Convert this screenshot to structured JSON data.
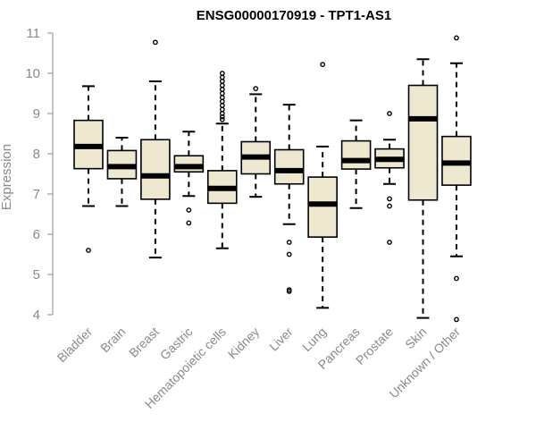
{
  "chart_data": {
    "type": "boxplot",
    "title": "ENSG00000170919 - TPT1-AS1",
    "xlabel": "",
    "ylabel": "Expression",
    "ylim": [
      4,
      11
    ],
    "yticks": [
      4,
      5,
      6,
      7,
      8,
      9,
      10,
      11
    ],
    "box_color": "#efe8d0",
    "categories": [
      "Bladder",
      "Brain",
      "Breast",
      "Gastric",
      "Hematopoietic cells",
      "Kidney",
      "Liver",
      "Lung",
      "Pancreas",
      "Prostate",
      "Skin",
      "Unknown / Other"
    ],
    "series": [
      {
        "name": "Bladder",
        "whisker_low": 6.7,
        "q1": 7.63,
        "median": 8.18,
        "q3": 8.83,
        "whisker_high": 9.68,
        "outliers": [
          5.6
        ]
      },
      {
        "name": "Brain",
        "whisker_low": 6.7,
        "q1": 7.38,
        "median": 7.68,
        "q3": 8.08,
        "whisker_high": 8.4,
        "outliers": []
      },
      {
        "name": "Breast",
        "whisker_low": 5.42,
        "q1": 6.87,
        "median": 7.45,
        "q3": 8.35,
        "whisker_high": 9.8,
        "outliers": [
          10.77
        ]
      },
      {
        "name": "Gastric",
        "whisker_low": 6.95,
        "q1": 7.55,
        "median": 7.68,
        "q3": 7.95,
        "whisker_high": 8.55,
        "outliers": [
          6.6,
          6.28
        ]
      },
      {
        "name": "Hematopoietic cells",
        "whisker_low": 5.65,
        "q1": 6.77,
        "median": 7.14,
        "q3": 7.58,
        "whisker_high": 8.75,
        "outliers": [
          8.85,
          8.92,
          9.0,
          9.1,
          9.2,
          9.3,
          9.4,
          9.5,
          9.6,
          9.7,
          9.8,
          9.9,
          10.0
        ]
      },
      {
        "name": "Kidney",
        "whisker_low": 6.93,
        "q1": 7.5,
        "median": 7.92,
        "q3": 8.3,
        "whisker_high": 9.48,
        "outliers": [
          9.62
        ]
      },
      {
        "name": "Liver",
        "whisker_low": 6.25,
        "q1": 7.25,
        "median": 7.58,
        "q3": 8.1,
        "whisker_high": 9.22,
        "outliers": [
          5.8,
          5.5,
          4.62,
          4.58
        ]
      },
      {
        "name": "Lung",
        "whisker_low": 4.17,
        "q1": 5.93,
        "median": 6.75,
        "q3": 7.42,
        "whisker_high": 8.18,
        "outliers": [
          10.22
        ]
      },
      {
        "name": "Pancreas",
        "whisker_low": 6.65,
        "q1": 7.62,
        "median": 7.83,
        "q3": 8.32,
        "whisker_high": 8.83,
        "outliers": []
      },
      {
        "name": "Prostate",
        "whisker_low": 7.25,
        "q1": 7.65,
        "median": 7.86,
        "q3": 8.12,
        "whisker_high": 8.35,
        "outliers": [
          9.0,
          6.88,
          6.7,
          5.8
        ]
      },
      {
        "name": "Skin",
        "whisker_low": 3.92,
        "q1": 6.85,
        "median": 8.87,
        "q3": 9.7,
        "whisker_high": 10.35,
        "outliers": []
      },
      {
        "name": "Unknown / Other",
        "whisker_low": 5.45,
        "q1": 7.22,
        "median": 7.77,
        "q3": 8.43,
        "whisker_high": 10.25,
        "outliers": [
          10.88,
          4.9,
          3.88
        ]
      }
    ]
  }
}
